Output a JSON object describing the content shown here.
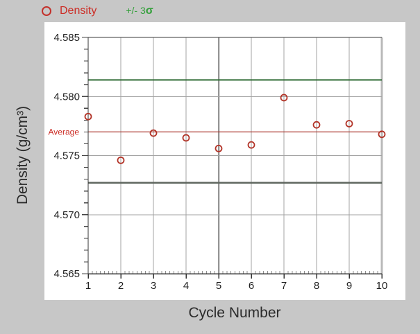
{
  "legend": {
    "density_label": "Density",
    "sigma_prefix": "+/- 3",
    "sigma_symbol": "σ"
  },
  "colors": {
    "background": "#c7c7c7",
    "panel": "#ffffff",
    "axis": "#333333",
    "grid": "#a3a3a3",
    "emphasized_grid": "#4f4f4f",
    "right_border": "#b9b9b9",
    "point_stroke": "#b23327",
    "average_line": "#aa342c",
    "average_text": "#cc2d26",
    "upper_sigma_line": "#2f6b35",
    "lower_sigma_line": "#5f675f",
    "legend_density": "#cc2d26",
    "legend_sigma": "#35a03c",
    "tick_text": "#1f1f1f"
  },
  "chart_data": {
    "type": "scatter",
    "title": "",
    "xlabel": "Cycle Number",
    "ylabel": "Density (g/cm³)",
    "series": [
      {
        "name": "Density",
        "x": [
          1,
          2,
          3,
          4,
          5,
          6,
          7,
          8,
          9,
          10
        ],
        "values": [
          4.5783,
          4.5746,
          4.5769,
          4.5765,
          4.5756,
          4.5759,
          4.5799,
          4.5776,
          4.5777,
          4.5768
        ]
      }
    ],
    "average": 4.577,
    "average_label": "Average",
    "upper_3sigma": 4.5814,
    "lower_3sigma": 4.5727,
    "xlim": [
      1,
      10
    ],
    "ylim": [
      4.565,
      4.585
    ],
    "y_tick_values": [
      4.565,
      4.57,
      4.575,
      4.58,
      4.585
    ],
    "y_tick_labels": [
      "4.565",
      "4.570",
      "4.575",
      "4.580",
      "4.585"
    ],
    "x_tick_labels": [
      "1",
      "2",
      "3",
      "4",
      "5",
      "6",
      "7",
      "8",
      "9",
      "10"
    ],
    "y_minor_step": 0.001,
    "x_minor_divisions": 8,
    "emphasized_x_gridline": 5,
    "grid": true,
    "legend_position": "top-left"
  }
}
